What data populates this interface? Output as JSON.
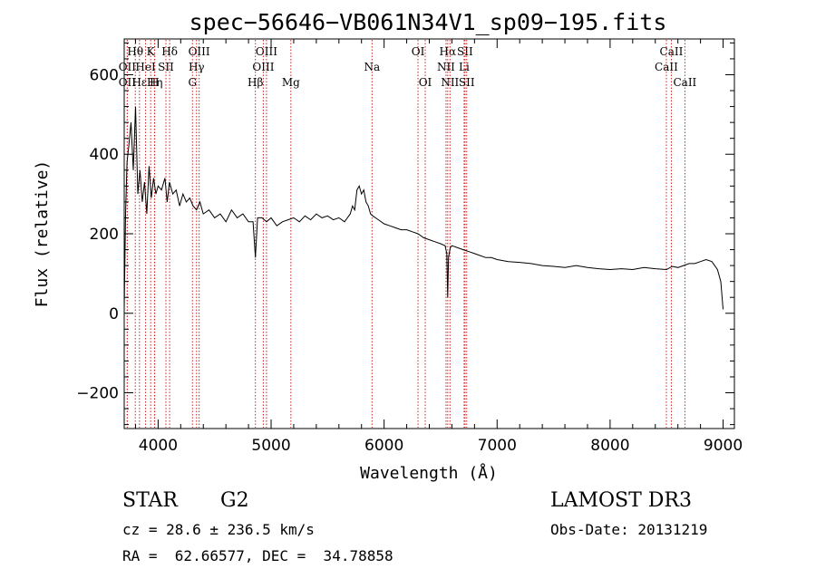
{
  "chart_data": {
    "type": "line",
    "title": "spec−56646−VB061N34V1_sp09−195.fits",
    "xlabel": "Wavelength (Å)",
    "ylabel": "Flux (relative)",
    "xlim": [
      3700,
      9100
    ],
    "ylim": [
      -290,
      690
    ],
    "x_ticks": [
      4000,
      5000,
      6000,
      7000,
      8000,
      9000
    ],
    "x_tick_labels": [
      "4000",
      "5000",
      "6000",
      "7000",
      "8000",
      "9000"
    ],
    "y_ticks": [
      -200,
      0,
      200,
      400,
      600
    ],
    "y_tick_labels": [
      "−200",
      "0",
      "200",
      "400",
      "600"
    ],
    "series": [
      {
        "name": "flux",
        "x": [
          3700,
          3712,
          3725,
          3740,
          3760,
          3780,
          3800,
          3820,
          3840,
          3860,
          3880,
          3900,
          3920,
          3940,
          3960,
          3980,
          4000,
          4030,
          4060,
          4080,
          4100,
          4130,
          4160,
          4190,
          4220,
          4250,
          4280,
          4310,
          4340,
          4370,
          4400,
          4450,
          4500,
          4550,
          4600,
          4650,
          4700,
          4750,
          4800,
          4840,
          4861,
          4880,
          4920,
          4960,
          5000,
          5050,
          5100,
          5150,
          5200,
          5250,
          5300,
          5350,
          5400,
          5450,
          5500,
          5550,
          5600,
          5650,
          5700,
          5720,
          5740,
          5760,
          5780,
          5800,
          5820,
          5840,
          5860,
          5880,
          5900,
          5950,
          6000,
          6050,
          6100,
          6150,
          6200,
          6250,
          6300,
          6350,
          6400,
          6450,
          6500,
          6540,
          6555,
          6563,
          6570,
          6585,
          6600,
          6650,
          6700,
          6750,
          6800,
          6850,
          6900,
          6950,
          7000,
          7100,
          7200,
          7300,
          7400,
          7500,
          7600,
          7700,
          7800,
          7900,
          8000,
          8100,
          8200,
          8300,
          8400,
          8500,
          8550,
          8600,
          8650,
          8700,
          8750,
          8800,
          8850,
          8900,
          8950,
          8980,
          9000
        ],
        "y": [
          10,
          250,
          380,
          420,
          480,
          360,
          520,
          300,
          360,
          280,
          330,
          250,
          370,
          290,
          340,
          300,
          320,
          310,
          340,
          280,
          330,
          300,
          310,
          270,
          300,
          280,
          290,
          270,
          260,
          280,
          250,
          260,
          240,
          250,
          230,
          260,
          240,
          250,
          230,
          230,
          140,
          240,
          240,
          230,
          240,
          220,
          230,
          235,
          240,
          230,
          245,
          235,
          250,
          240,
          245,
          235,
          240,
          230,
          250,
          270,
          260,
          310,
          320,
          300,
          310,
          280,
          270,
          250,
          245,
          235,
          225,
          220,
          215,
          210,
          210,
          205,
          200,
          190,
          185,
          180,
          175,
          170,
          150,
          40,
          140,
          165,
          170,
          165,
          160,
          155,
          150,
          145,
          140,
          140,
          135,
          130,
          128,
          125,
          120,
          118,
          115,
          120,
          115,
          112,
          110,
          112,
          110,
          115,
          112,
          110,
          118,
          115,
          120,
          125,
          125,
          130,
          135,
          130,
          110,
          80,
          10
        ]
      }
    ],
    "lines": [
      {
        "label": "Hθ",
        "x": 3798,
        "row": 0
      },
      {
        "label": "K",
        "x": 3934,
        "row": 0
      },
      {
        "label": "Hδ",
        "x": 4102,
        "row": 0
      },
      {
        "label": "OIII",
        "x": 4363,
        "row": 0
      },
      {
        "label": "OIII",
        "x": 4959,
        "row": 0
      },
      {
        "label": "OI",
        "x": 6300,
        "row": 0
      },
      {
        "label": "Hα",
        "x": 6563,
        "row": 0
      },
      {
        "label": "SII",
        "x": 6716,
        "row": 0
      },
      {
        "label": "CaII",
        "x": 8542,
        "row": 0
      },
      {
        "label": "OII",
        "x": 3727,
        "row": 1
      },
      {
        "label": "HeI",
        "x": 3889,
        "row": 1
      },
      {
        "label": "SII",
        "x": 4069,
        "row": 1
      },
      {
        "label": "Hγ",
        "x": 4340,
        "row": 1
      },
      {
        "label": "OIII",
        "x": 4931,
        "row": 1
      },
      {
        "label": "Na",
        "x": 5893,
        "row": 1
      },
      {
        "label": "NII",
        "x": 6548,
        "row": 1
      },
      {
        "label": "Li",
        "x": 6708,
        "row": 1
      },
      {
        "label": "CaII",
        "x": 8498,
        "row": 1
      },
      {
        "label": "OII",
        "x": 3727,
        "row": 2
      },
      {
        "label": "Hε",
        "x": 3835,
        "row": 2
      },
      {
        "label": "Hη",
        "x": 3970,
        "row": 2
      },
      {
        "label": "H",
        "x": 3968,
        "row": 2
      },
      {
        "label": "G",
        "x": 4304,
        "row": 2
      },
      {
        "label": "Hβ",
        "x": 4861,
        "row": 2
      },
      {
        "label": "Mg",
        "x": 5175,
        "row": 2
      },
      {
        "label": "OI",
        "x": 6364,
        "row": 2
      },
      {
        "label": "NII",
        "x": 6583,
        "row": 2
      },
      {
        "label": "SII",
        "x": 6731,
        "row": 2
      },
      {
        "label": "CaII",
        "x": 8662,
        "row": 2
      }
    ]
  },
  "info": {
    "object_class": "STAR",
    "subclass": "G2",
    "survey": "LAMOST DR3",
    "redshift": "cz = 28.6 ± 236.5 km/s",
    "obs_date": "Obs-Date: 20131219",
    "coords": "RA =  62.66577, DEC =  34.78858"
  }
}
